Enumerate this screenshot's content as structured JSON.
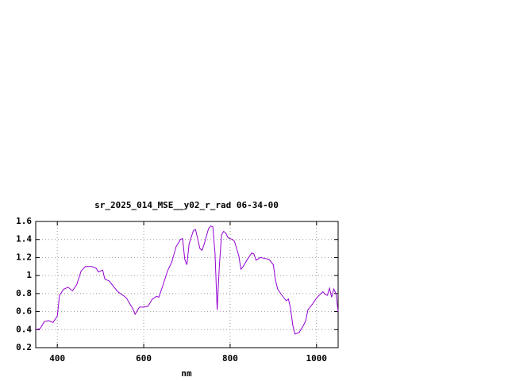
{
  "chart_data": {
    "type": "line",
    "title": "sr_2025_014_MSE__y02_r_rad 06-34-00",
    "x_label": "nm",
    "xlim": [
      350,
      1050
    ],
    "xticks": [
      400,
      600,
      800,
      1000
    ],
    "ylim": [
      0.2,
      1.6
    ],
    "yticks": [
      0.2,
      0.4,
      0.6,
      0.8,
      1,
      1.2,
      1.4,
      1.6
    ],
    "grid": true,
    "x": [
      350,
      360,
      370,
      380,
      390,
      400,
      405,
      415,
      425,
      435,
      445,
      455,
      465,
      480,
      490,
      495,
      505,
      510,
      520,
      530,
      540,
      555,
      560,
      575,
      580,
      590,
      600,
      610,
      620,
      630,
      635,
      645,
      655,
      665,
      675,
      685,
      690,
      695,
      700,
      705,
      715,
      720,
      730,
      735,
      740,
      750,
      755,
      760,
      765,
      770,
      775,
      780,
      785,
      790,
      795,
      805,
      810,
      820,
      825,
      830,
      840,
      850,
      855,
      860,
      870,
      880,
      890,
      900,
      905,
      910,
      920,
      930,
      935,
      940,
      945,
      950,
      960,
      970,
      975,
      980,
      985,
      990,
      1000,
      1010,
      1015,
      1020,
      1025,
      1030,
      1035,
      1040,
      1045,
      1050
    ],
    "series": [
      {
        "color": "#9400d3",
        "values": [
          0.4,
          0.41,
          0.49,
          0.5,
          0.48,
          0.55,
          0.78,
          0.85,
          0.87,
          0.83,
          0.9,
          1.05,
          1.1,
          1.1,
          1.08,
          1.04,
          1.06,
          0.96,
          0.94,
          0.88,
          0.82,
          0.77,
          0.75,
          0.63,
          0.57,
          0.65,
          0.65,
          0.66,
          0.74,
          0.77,
          0.76,
          0.9,
          1.05,
          1.15,
          1.32,
          1.4,
          1.41,
          1.18,
          1.12,
          1.35,
          1.5,
          1.51,
          1.3,
          1.28,
          1.35,
          1.52,
          1.55,
          1.54,
          1.25,
          0.62,
          1.1,
          1.45,
          1.49,
          1.47,
          1.42,
          1.4,
          1.38,
          1.22,
          1.07,
          1.1,
          1.18,
          1.25,
          1.24,
          1.17,
          1.2,
          1.19,
          1.18,
          1.12,
          0.95,
          0.85,
          0.78,
          0.72,
          0.74,
          0.63,
          0.45,
          0.35,
          0.37,
          0.45,
          0.5,
          0.62,
          0.65,
          0.68,
          0.75,
          0.8,
          0.82,
          0.79,
          0.78,
          0.86,
          0.76,
          0.85,
          0.8,
          0.6
        ]
      }
    ]
  }
}
